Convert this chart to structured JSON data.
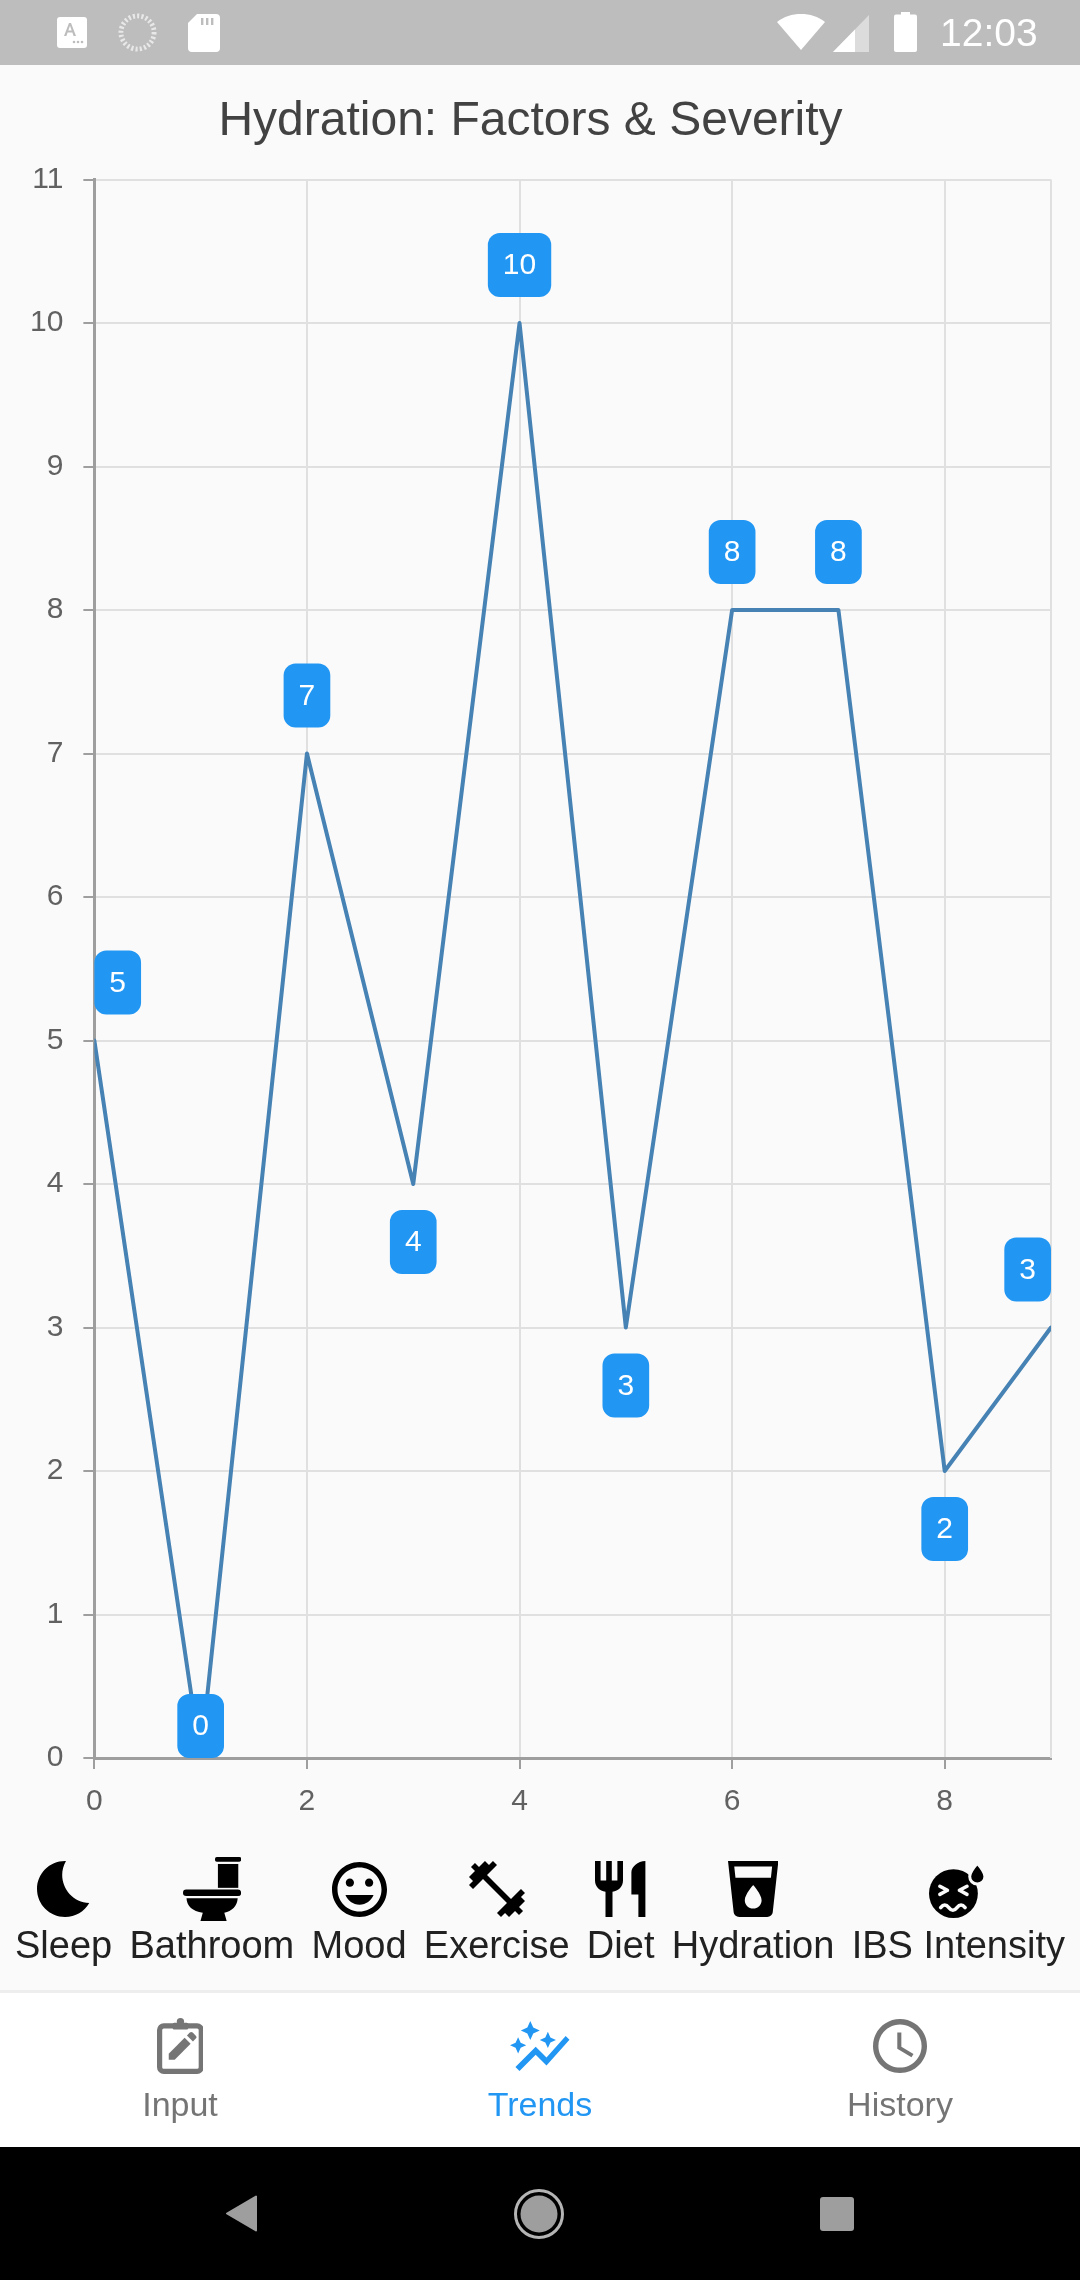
{
  "chart_data": [
    {
      "type": "other",
      "annotations": [
        "12:03"
      ]
    },
    {
      "type": "line",
      "title": "Hydration: Factors & Severity",
      "x": [
        0,
        1,
        2,
        3,
        4,
        5,
        6,
        7,
        8,
        9
      ],
      "values": [
        5,
        0,
        7,
        4,
        10,
        3,
        8,
        8,
        2,
        3
      ],
      "color": "#4682b4",
      "xlim": [
        0,
        9
      ],
      "xticks": [
        0,
        2,
        4,
        6,
        8
      ],
      "ylim": [
        0,
        11
      ],
      "yticks": [
        0,
        1,
        2,
        3,
        4,
        5,
        6,
        7,
        8,
        9,
        10,
        11
      ],
      "grid": true,
      "data_labels": true,
      "marker": "none",
      "line_style": "solid"
    },
    {
      "type": "other",
      "annotations": [
        "Sleep",
        "Bathroom",
        "Mood",
        "Exercise",
        "Diet",
        "Hydration",
        "IBS Intensity"
      ]
    },
    {
      "type": "other",
      "annotations": [
        "Input",
        "Trends",
        "History"
      ],
      "colors": [
        "#757575",
        "#2196f3",
        "#757575"
      ]
    }
  ]
}
